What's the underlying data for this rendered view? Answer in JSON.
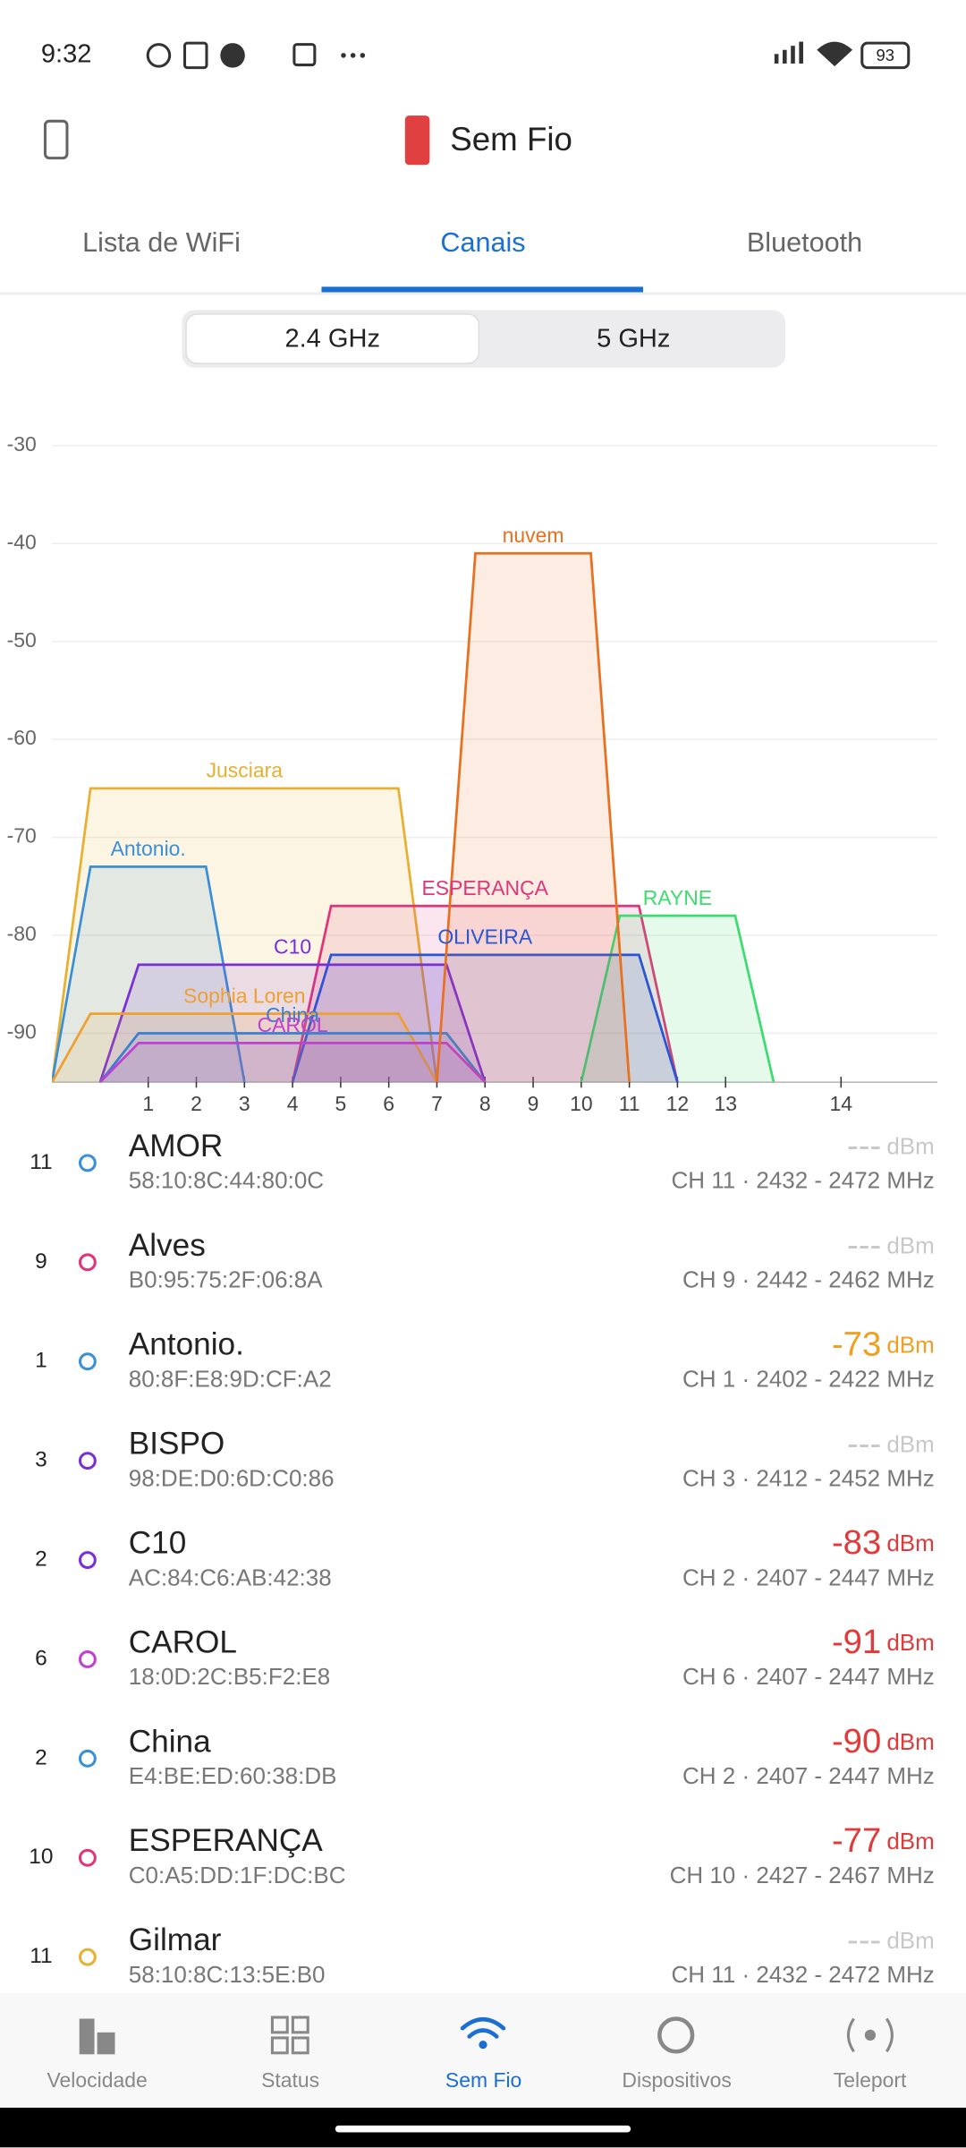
{
  "status_bar": {
    "time": "9:32",
    "battery": "93"
  },
  "header": {
    "title": "Sem Fio"
  },
  "tabs": [
    "Lista de WiFi",
    "Canais",
    "Bluetooth"
  ],
  "band_selector": [
    "2.4 GHz",
    "5 GHz"
  ],
  "chart_data": {
    "type": "area",
    "grid": true,
    "xlim": [
      2402,
      2494
    ],
    "ylim": [
      -95,
      -30
    ],
    "yticks": [
      -90,
      -80,
      -70,
      -60,
      -50,
      -40,
      -30
    ],
    "xticks": [
      {
        "value": 2412,
        "label": "1"
      },
      {
        "value": 2417,
        "label": "2"
      },
      {
        "value": 2422,
        "label": "3"
      },
      {
        "value": 2427,
        "label": "4"
      },
      {
        "value": 2432,
        "label": "5"
      },
      {
        "value": 2437,
        "label": "6"
      },
      {
        "value": 2442,
        "label": "7"
      },
      {
        "value": 2447,
        "label": "8"
      },
      {
        "value": 2452,
        "label": "9"
      },
      {
        "value": 2457,
        "label": "10"
      },
      {
        "value": 2462,
        "label": "11"
      },
      {
        "value": 2467,
        "label": "12"
      },
      {
        "value": 2472,
        "label": "13"
      },
      {
        "value": 2484,
        "label": "14"
      }
    ],
    "series": [
      {
        "name": "Jusciara",
        "color": "#e8b030",
        "x": [
          2422
        ],
        "width": [
          40
        ],
        "values": [
          -65
        ]
      },
      {
        "name": "Antonio.",
        "color": "#3b8fd6",
        "x": [
          2412
        ],
        "width": [
          20
        ],
        "values": [
          -73
        ]
      },
      {
        "name": "ESPERANÇA",
        "color": "#e0357a",
        "x": [
          2447
        ],
        "width": [
          40
        ],
        "values": [
          -77
        ]
      },
      {
        "name": "RAYNE",
        "color": "#3ddc70",
        "x": [
          2467
        ],
        "width": [
          20
        ],
        "values": [
          -78
        ]
      },
      {
        "name": "OLIVEIRA",
        "color": "#2a55d4",
        "x": [
          2447
        ],
        "width": [
          40
        ],
        "values": [
          -82
        ]
      },
      {
        "name": "C10",
        "color": "#7a2fd6",
        "x": [
          2427
        ],
        "width": [
          40
        ],
        "values": [
          -83
        ]
      },
      {
        "name": "Sophia Loren",
        "color": "#f0a030",
        "x": [
          2422
        ],
        "width": [
          40
        ],
        "values": [
          -88
        ]
      },
      {
        "name": "China",
        "color": "#3a7fd0",
        "x": [
          2427
        ],
        "width": [
          40
        ],
        "values": [
          -90
        ]
      },
      {
        "name": "CAROL",
        "color": "#c040d0",
        "x": [
          2427
        ],
        "width": [
          40
        ],
        "values": [
          -91
        ]
      },
      {
        "name": "nuvem",
        "color": "#e8701f",
        "x": [
          2452
        ],
        "width": [
          20
        ],
        "values": [
          -41
        ]
      }
    ]
  },
  "networks": [
    {
      "channel": 11,
      "color": "#3b8fd6",
      "name": "AMOR",
      "mac": "58:10:8C:44:80:0C",
      "signal": "---",
      "signal_color": "#c8c8c8",
      "unit": "dBm",
      "band": "CH 11 · 2432 - 2472 MHz"
    },
    {
      "channel": 9,
      "color": "#e0357a",
      "name": "Alves",
      "mac": "B0:95:75:2F:06:8A",
      "signal": "---",
      "signal_color": "#c8c8c8",
      "unit": "dBm",
      "band": "CH 9 · 2442 - 2462 MHz"
    },
    {
      "channel": 1,
      "color": "#3b8fd6",
      "name": "Antonio.",
      "mac": "80:8F:E8:9D:CF:A2",
      "signal": "-73",
      "signal_color": "#f0a020",
      "unit": "dBm",
      "band": "CH 1 · 2402 - 2422 MHz"
    },
    {
      "channel": 3,
      "color": "#7a2fd6",
      "name": "BISPO",
      "mac": "98:DE:D0:6D:C0:86",
      "signal": "---",
      "signal_color": "#c8c8c8",
      "unit": "dBm",
      "band": "CH 3 · 2412 - 2452 MHz"
    },
    {
      "channel": 2,
      "color": "#7a2fd6",
      "name": "C10",
      "mac": "AC:84:C6:AB:42:38",
      "signal": "-83",
      "signal_color": "#e03a3a",
      "unit": "dBm",
      "band": "CH 2 · 2407 - 2447 MHz"
    },
    {
      "channel": 6,
      "color": "#c040d0",
      "name": "CAROL",
      "mac": "18:0D:2C:B5:F2:E8",
      "signal": "-91",
      "signal_color": "#e03a3a",
      "unit": "dBm",
      "band": "CH 6 · 2407 - 2447 MHz"
    },
    {
      "channel": 2,
      "color": "#3b8fd6",
      "name": "China",
      "mac": "E4:BE:ED:60:38:DB",
      "signal": "-90",
      "signal_color": "#e03a3a",
      "unit": "dBm",
      "band": "CH 2 · 2407 - 2447 MHz"
    },
    {
      "channel": 10,
      "color": "#e0357a",
      "name": "ESPERANÇA",
      "mac": "C0:A5:DD:1F:DC:BC",
      "signal": "-77",
      "signal_color": "#e03a3a",
      "unit": "dBm",
      "band": "CH 10 · 2427 - 2467 MHz"
    },
    {
      "channel": 11,
      "color": "#e8b030",
      "name": "Gilmar",
      "mac": "58:10:8C:13:5E:B0",
      "signal": "---",
      "signal_color": "#c8c8c8",
      "unit": "dBm",
      "band": "CH 11 · 2432 - 2472 MHz"
    }
  ],
  "nav": [
    "Velocidade",
    "Status",
    "Sem Fio",
    "Dispositivos",
    "Teleport"
  ]
}
